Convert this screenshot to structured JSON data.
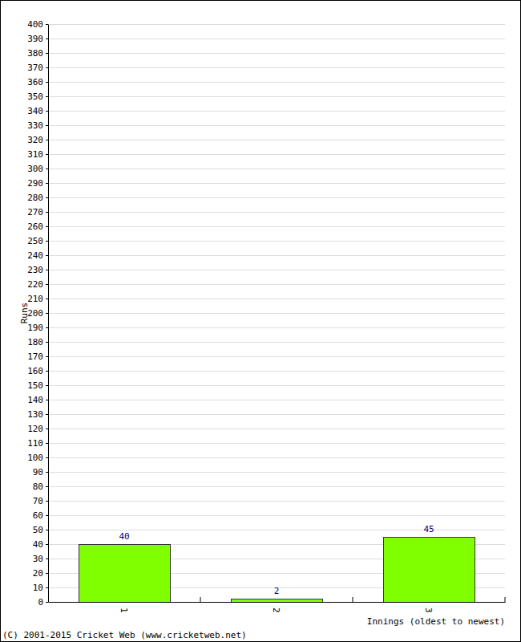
{
  "chart_data": {
    "type": "bar",
    "categories": [
      "1",
      "2",
      "3"
    ],
    "values": [
      40,
      2,
      45
    ],
    "color": "#80ff00",
    "x_label": "Innings (oldest to newest)",
    "y_label": "Runs",
    "ylim": [
      0,
      400
    ],
    "yticks": [
      0,
      10,
      20,
      30,
      40,
      50,
      60,
      70,
      80,
      90,
      100,
      110,
      120,
      130,
      140,
      150,
      160,
      170,
      180,
      190,
      200,
      210,
      220,
      230,
      240,
      250,
      260,
      270,
      280,
      290,
      300,
      310,
      320,
      330,
      340,
      350,
      360,
      370,
      380,
      390,
      400
    ],
    "grid": true,
    "data_labels": true,
    "annotations": [
      "(C) 2001-2015 Cricket Web (www.cricketweb.net)"
    ]
  }
}
